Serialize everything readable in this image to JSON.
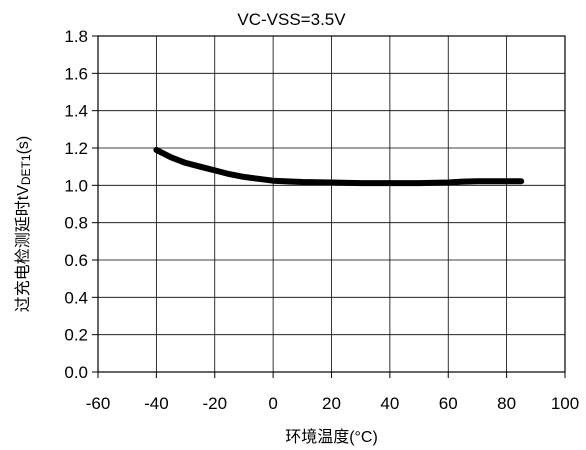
{
  "chart_data": {
    "type": "line",
    "title": "VC-VSS=3.5V",
    "xlabel": "环境温度(°C)",
    "ylabel_main": "过充电检测延时tV",
    "ylabel_sub": "DET1",
    "ylabel_unit": "(s)",
    "xlim": [
      -60,
      100
    ],
    "ylim": [
      0.0,
      1.8
    ],
    "x_ticks": [
      "-60",
      "-40",
      "-20",
      "0",
      "20",
      "40",
      "60",
      "80",
      "100"
    ],
    "y_ticks": [
      "0.0",
      "0.2",
      "0.4",
      "0.6",
      "0.8",
      "1.0",
      "1.2",
      "1.4",
      "1.6",
      "1.8"
    ],
    "grid": true,
    "series": [
      {
        "color": "#000000",
        "x": [
          -40,
          -35,
          -30,
          -25,
          -20,
          -15,
          -10,
          -5,
          0,
          10,
          20,
          30,
          40,
          50,
          60,
          65,
          70,
          80,
          85
        ],
        "y": [
          1.19,
          1.15,
          1.12,
          1.1,
          1.08,
          1.06,
          1.045,
          1.035,
          1.025,
          1.018,
          1.015,
          1.012,
          1.012,
          1.012,
          1.015,
          1.02,
          1.022,
          1.022,
          1.022
        ]
      }
    ]
  }
}
